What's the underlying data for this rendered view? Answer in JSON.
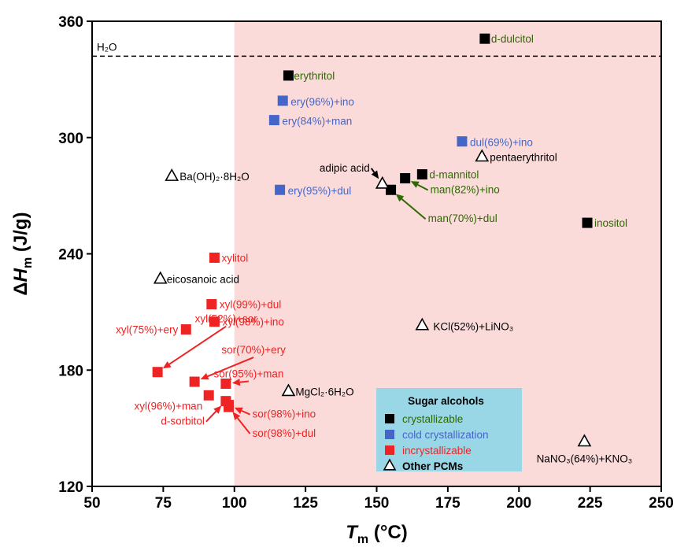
{
  "chart_data": {
    "type": "scatter",
    "xlim": [
      50,
      250
    ],
    "ylim": [
      120,
      360
    ],
    "x_ticks": [
      50,
      75,
      100,
      125,
      150,
      175,
      200,
      225,
      250
    ],
    "y_ticks": [
      120,
      180,
      240,
      300,
      360
    ],
    "xlabel": {
      "main": "T",
      "sub": "m",
      "unit": " (°C)"
    },
    "ylabel": {
      "prefix": "Δ",
      "main": "H",
      "sub": "m",
      "unit": " (J/g)"
    },
    "shaded_region": {
      "x_from": 100,
      "x_to": 250,
      "color": "#fbdada"
    },
    "reference_line": {
      "y": 342,
      "label": "H₂O",
      "style": "dashed"
    },
    "colors": {
      "crystallizable": "#000000",
      "cold_crystallization": "#4466c8",
      "incrystallizable": "#ee2424",
      "crystallizable_text": "#2d6a00",
      "other": "#000000",
      "legend_bg": "#99d6e6"
    },
    "legend": {
      "title": "Sugar alcohols",
      "placement": "bottom-right",
      "items": [
        {
          "label": "crystallizable",
          "group": "crystallizable"
        },
        {
          "label": "cold crystallization",
          "group": "cold"
        },
        {
          "label": "incrystallizable",
          "group": "incryst"
        },
        {
          "label": "Other PCMs",
          "group": "other"
        }
      ]
    },
    "series": [
      {
        "name": "crystallizable",
        "marker": "square",
        "points": [
          {
            "label": "d-dulcitol",
            "x": 188,
            "y": 351
          },
          {
            "label": "erythritol",
            "x": 119,
            "y": 332
          },
          {
            "label": "d-mannitol",
            "x": 166,
            "y": 281
          },
          {
            "label": "man(82%)+ino",
            "x": 160,
            "y": 279
          },
          {
            "label": "man(70%)+dul",
            "x": 155,
            "y": 273
          },
          {
            "label": "inositol",
            "x": 224,
            "y": 256
          }
        ]
      },
      {
        "name": "cold crystallization",
        "marker": "square",
        "points": [
          {
            "label": "ery(96%)+ino",
            "x": 117,
            "y": 319
          },
          {
            "label": "ery(84%)+man",
            "x": 114,
            "y": 309
          },
          {
            "label": "dul(69%)+ino",
            "x": 180,
            "y": 298
          },
          {
            "label": "ery(95%)+dul",
            "x": 116,
            "y": 273
          }
        ]
      },
      {
        "name": "incrystallizable",
        "marker": "square",
        "points": [
          {
            "label": "xylitol",
            "x": 93,
            "y": 238
          },
          {
            "label": "xyl(99%)+dul",
            "x": 92,
            "y": 214
          },
          {
            "label": "xyl(98%)+ino",
            "x": 93,
            "y": 205
          },
          {
            "label": "xyl(75%)+ery",
            "x": 83,
            "y": 201
          },
          {
            "label": "xyl(52%)+sor",
            "x": 73,
            "y": 179
          },
          {
            "label": "sor(70%)+ery",
            "x": 86,
            "y": 174
          },
          {
            "label": "sor(95%)+man",
            "x": 97,
            "y": 173
          },
          {
            "label": "xyl(96%)+man",
            "x": 91,
            "y": 167
          },
          {
            "label": "d-sorbitol",
            "x": 97,
            "y": 164
          },
          {
            "label": "sor(98%)+ino",
            "x": 98,
            "y": 162
          },
          {
            "label": "sor(98%)+dul",
            "x": 98,
            "y": 161
          }
        ]
      },
      {
        "name": "Other PCMs",
        "marker": "open-triangle",
        "points": [
          {
            "label": "pentaerythritol",
            "x": 187,
            "y": 290
          },
          {
            "label": "adipic acid",
            "x": 152,
            "y": 276
          },
          {
            "label": "Ba(OH)₂·8H₂O",
            "x": 78,
            "y": 280
          },
          {
            "label": "eicosanoic acid",
            "x": 74,
            "y": 227
          },
          {
            "label": "KCl(52%)+LiNO₃",
            "x": 166,
            "y": 203
          },
          {
            "label": "MgCl₂·6H₂O",
            "x": 119,
            "y": 169
          },
          {
            "label": "NaNO₃(64%)+KNO₃",
            "x": 223,
            "y": 143
          }
        ]
      }
    ]
  }
}
